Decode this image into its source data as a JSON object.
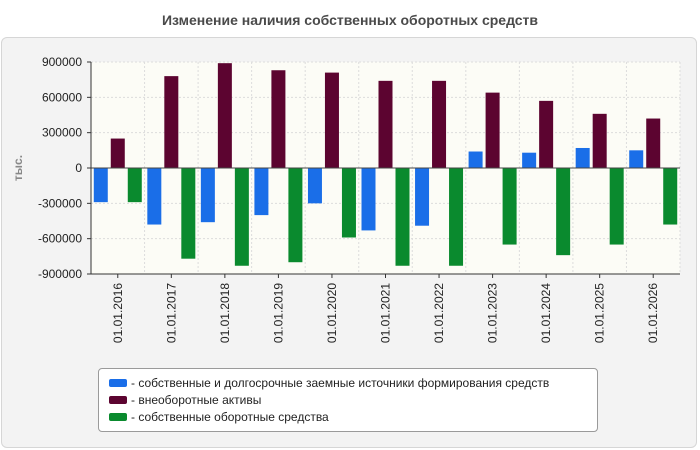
{
  "title": "Изменение наличия собственных оборотных средств",
  "chart_data": {
    "type": "bar",
    "title": "Изменение наличия собственных оборотных средств",
    "ylabel": "тыс.",
    "ylim": [
      -900000,
      900000
    ],
    "yticks": [
      900000,
      600000,
      300000,
      0,
      -300000,
      -600000,
      -900000
    ],
    "grid": true,
    "legend_position": "bottom",
    "categories": [
      "01.01.2016",
      "01.01.2017",
      "01.01.2018",
      "01.01.2019",
      "01.01.2020",
      "01.01.2021",
      "01.01.2022",
      "01.01.2023",
      "01.01.2024",
      "01.01.2025",
      "01.01.2026"
    ],
    "series": [
      {
        "name": "собственные и долгосрочные заемные источники формирования средств",
        "color": "#1a6ee8",
        "values": [
          -290000,
          -480000,
          -460000,
          -400000,
          -300000,
          -530000,
          -490000,
          140000,
          130000,
          170000,
          150000
        ]
      },
      {
        "name": "внеоборотные активы",
        "color": "#5c0430",
        "values": [
          250000,
          780000,
          890000,
          830000,
          810000,
          740000,
          740000,
          640000,
          570000,
          460000,
          420000
        ]
      },
      {
        "name": "собственные оборотные средства",
        "color": "#0a8a2e",
        "values": [
          -290000,
          -770000,
          -830000,
          -800000,
          -590000,
          -830000,
          -830000,
          -650000,
          -740000,
          -650000,
          -480000
        ]
      }
    ]
  },
  "legend": {
    "items": [
      {
        "label": "- собственные и долгосрочные заемные источники формирования средств",
        "color": "#1a6ee8"
      },
      {
        "label": "- внеоборотные активы",
        "color": "#5c0430"
      },
      {
        "label": "- собственные оборотные средства",
        "color": "#0a8a2e"
      }
    ]
  }
}
